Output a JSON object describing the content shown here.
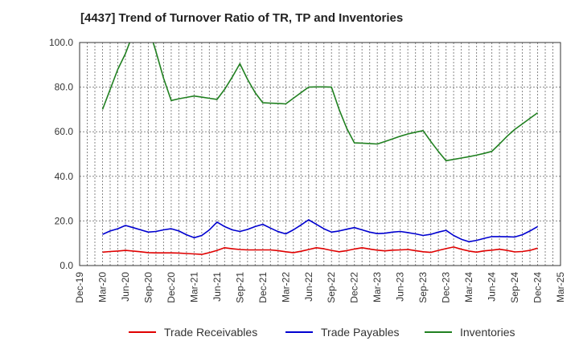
{
  "chart_data": {
    "type": "line",
    "title": "[4437]  Trend of Turnover Ratio of TR, TP and Inventories",
    "xlabel": "",
    "ylabel": "",
    "ylim": [
      0,
      100
    ],
    "yticks": [
      "0.0",
      "20.0",
      "40.0",
      "60.0",
      "80.0",
      "100.0"
    ],
    "xticks": [
      "Dec-19",
      "Mar-20",
      "Jun-20",
      "Sep-20",
      "Dec-20",
      "Mar-21",
      "Jun-21",
      "Sep-21",
      "Dec-21",
      "Mar-22",
      "Jun-22",
      "Sep-22",
      "Dec-22",
      "Mar-23",
      "Jun-23",
      "Sep-23",
      "Dec-23",
      "Mar-24",
      "Jun-24",
      "Sep-24",
      "Dec-24",
      "Mar-25"
    ],
    "grid": true,
    "legend_position": "bottom",
    "x": [
      "Mar-20",
      "Apr-20",
      "May-20",
      "Jun-20",
      "Jul-20",
      "Aug-20",
      "Sep-20",
      "Oct-20",
      "Nov-20",
      "Dec-20",
      "Jan-21",
      "Feb-21",
      "Mar-21",
      "Apr-21",
      "May-21",
      "Jun-21",
      "Jul-21",
      "Aug-21",
      "Sep-21",
      "Oct-21",
      "Nov-21",
      "Dec-21",
      "Jan-22",
      "Feb-22",
      "Mar-22",
      "Apr-22",
      "May-22",
      "Jun-22",
      "Jul-22",
      "Aug-22",
      "Sep-22",
      "Oct-22",
      "Nov-22",
      "Dec-22",
      "Jan-23",
      "Feb-23",
      "Mar-23",
      "Apr-23",
      "May-23",
      "Jun-23",
      "Jul-23",
      "Aug-23",
      "Sep-23",
      "Oct-23",
      "Nov-23",
      "Dec-23",
      "Jan-24",
      "Feb-24",
      "Mar-24",
      "Apr-24",
      "May-24",
      "Jun-24",
      "Jul-24",
      "Aug-24",
      "Sep-24",
      "Oct-24",
      "Nov-24",
      "Dec-24"
    ],
    "series": [
      {
        "name": "Trade Receivables",
        "color": "#e00000",
        "values": [
          6.0,
          6.3,
          6.5,
          6.8,
          6.5,
          6.2,
          5.8,
          5.7,
          5.7,
          5.7,
          5.6,
          5.4,
          5.2,
          5.0,
          5.8,
          6.8,
          8.0,
          7.5,
          7.2,
          7.0,
          7.0,
          7.0,
          7.0,
          6.7,
          6.2,
          5.8,
          6.4,
          7.2,
          8.0,
          7.5,
          6.8,
          6.2,
          6.7,
          7.4,
          8.0,
          7.4,
          6.9,
          6.6,
          6.9,
          7.0,
          7.2,
          6.7,
          6.2,
          5.9,
          6.8,
          7.6,
          8.3,
          7.3,
          6.5,
          6.0,
          6.6,
          6.9,
          7.3,
          6.8,
          6.1,
          6.3,
          6.8,
          7.8
        ]
      },
      {
        "name": "Trade Payables",
        "color": "#0000d0",
        "values": [
          14.0,
          15.5,
          16.5,
          18.0,
          17.0,
          16.0,
          15.0,
          15.3,
          16.0,
          16.5,
          15.5,
          13.8,
          12.5,
          13.5,
          16.0,
          19.5,
          17.5,
          16.0,
          15.3,
          16.2,
          17.5,
          18.5,
          16.8,
          15.2,
          14.2,
          16.0,
          18.2,
          20.5,
          18.5,
          16.5,
          15.0,
          15.5,
          16.3,
          17.0,
          16.0,
          15.0,
          14.3,
          14.5,
          15.0,
          15.3,
          14.8,
          14.2,
          13.5,
          14.0,
          15.0,
          15.8,
          13.5,
          11.8,
          10.7,
          11.3,
          12.2,
          13.0,
          13.0,
          12.9,
          12.8,
          13.8,
          15.5,
          17.5
        ]
      },
      {
        "name": "Inventories",
        "color": "#208020",
        "values": [
          70.0,
          79.0,
          88.0,
          95.0,
          104.0,
          110.0,
          107.0,
          96.0,
          84.0,
          74.0,
          74.8,
          75.4,
          76.0,
          75.5,
          75.0,
          74.5,
          79.0,
          84.5,
          90.5,
          83.5,
          77.5,
          73.0,
          72.8,
          72.7,
          72.5,
          75.0,
          77.5,
          80.0,
          80.1,
          80.1,
          80.0,
          70.0,
          61.5,
          55.0,
          54.9,
          54.7,
          54.5,
          55.6,
          56.8,
          58.0,
          59.0,
          59.8,
          60.5,
          55.7,
          51.2,
          47.0,
          47.6,
          48.2,
          48.8,
          49.5,
          50.3,
          51.2,
          54.5,
          58.0,
          61.0,
          63.5,
          66.0,
          68.5
        ]
      }
    ]
  }
}
